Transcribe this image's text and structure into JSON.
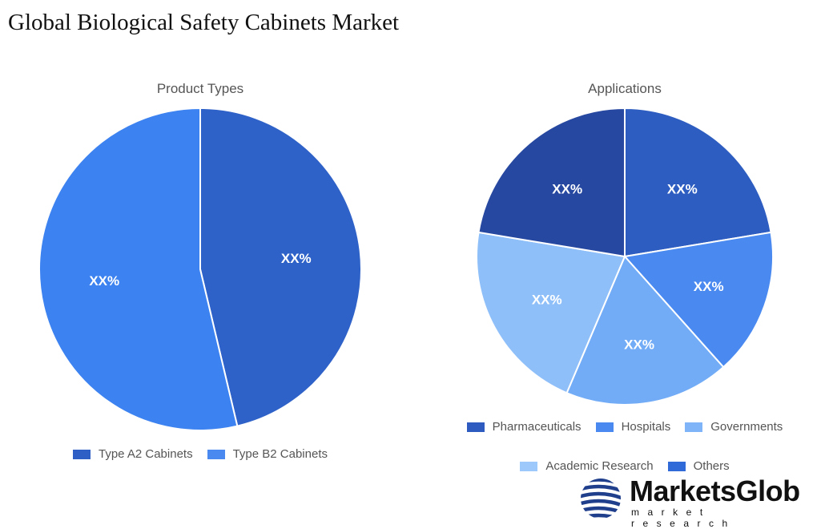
{
  "title": "Global Biological Safety Cabinets Market",
  "chart_data": [
    {
      "type": "pie",
      "title": "Product Types",
      "categories": [
        "Type A2 Cabinets",
        "Type B2 Cabinets"
      ],
      "values": [
        46.3,
        53.7
      ],
      "labels": [
        "XX%",
        "XX%"
      ],
      "colors": [
        "#2f62c8",
        "#3c82f0"
      ],
      "legend_colors": [
        "#2f5fc4",
        "#4a8af0"
      ],
      "legend": "bottom"
    },
    {
      "type": "pie",
      "title": "Applications",
      "categories": [
        "Pharmaceuticals",
        "Hospitals",
        "Governments",
        "Academic Research",
        "Others"
      ],
      "values": [
        22.4,
        16.0,
        18.0,
        21.2,
        22.4
      ],
      "labels": [
        "XX%",
        "XX%",
        "XX%",
        "XX%",
        "XX%"
      ],
      "colors": [
        "#2d5dc0",
        "#4a8af0",
        "#72acf7",
        "#8fbff9",
        "#2748a0"
      ],
      "legend_colors": [
        "#2d5bbf",
        "#4a8af0",
        "#7fb4f8",
        "#9cc8fb",
        "#2f6ad8"
      ],
      "legend": "bottom"
    }
  ],
  "logo": {
    "name": "MarketsGlob",
    "tagline": "market research"
  }
}
